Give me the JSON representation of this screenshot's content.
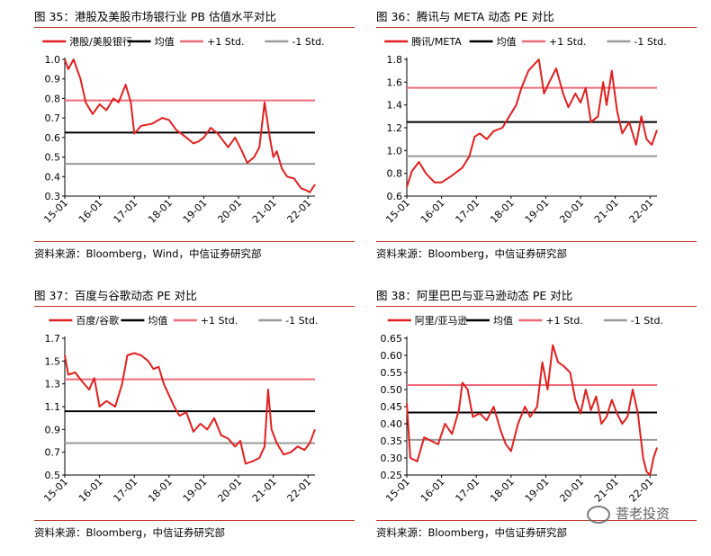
{
  "charts": [
    {
      "title": "图 35：港股及美股市场银行业 PB 估值水平对比",
      "source": "资料来源：Bloomberg，Wind，中信证券研究部",
      "type": "line",
      "series_name": "港股/美股银行",
      "legend": [
        "港股/美股银行",
        "均值",
        "+1 Std.",
        "-1 Std."
      ],
      "ylim": [
        0.3,
        1.0
      ],
      "yticks": [
        "0.3",
        "0.4",
        "0.5",
        "0.6",
        "0.7",
        "0.8",
        "0.9",
        "1.0"
      ],
      "xticks": [
        "15-01",
        "16-01",
        "17-01",
        "18-01",
        "19-01",
        "20-01",
        "21-01",
        "22-01"
      ],
      "mean": 0.625,
      "plus_std": 0.79,
      "minus_std": 0.465,
      "points": [
        [
          2015.0,
          1.0
        ],
        [
          2015.1,
          0.95
        ],
        [
          2015.25,
          1.02
        ],
        [
          2015.45,
          0.9
        ],
        [
          2015.6,
          0.78
        ],
        [
          2015.8,
          0.72
        ],
        [
          2016.0,
          0.77
        ],
        [
          2016.2,
          0.74
        ],
        [
          2016.4,
          0.8
        ],
        [
          2016.55,
          0.78
        ],
        [
          2016.75,
          0.87
        ],
        [
          2016.9,
          0.78
        ],
        [
          2017.0,
          0.62
        ],
        [
          2017.2,
          0.66
        ],
        [
          2017.5,
          0.67
        ],
        [
          2017.8,
          0.7
        ],
        [
          2018.0,
          0.69
        ],
        [
          2018.2,
          0.64
        ],
        [
          2018.5,
          0.6
        ],
        [
          2018.7,
          0.57
        ],
        [
          2018.85,
          0.58
        ],
        [
          2019.0,
          0.6
        ],
        [
          2019.2,
          0.65
        ],
        [
          2019.4,
          0.62
        ],
        [
          2019.7,
          0.55
        ],
        [
          2019.9,
          0.6
        ],
        [
          2020.1,
          0.53
        ],
        [
          2020.25,
          0.47
        ],
        [
          2020.45,
          0.5
        ],
        [
          2020.6,
          0.55
        ],
        [
          2020.75,
          0.78
        ],
        [
          2020.9,
          0.6
        ],
        [
          2021.0,
          0.5
        ],
        [
          2021.1,
          0.53
        ],
        [
          2021.25,
          0.44
        ],
        [
          2021.4,
          0.4
        ],
        [
          2021.6,
          0.39
        ],
        [
          2021.8,
          0.34
        ],
        [
          2021.95,
          0.33
        ],
        [
          2022.05,
          0.32
        ],
        [
          2022.2,
          0.36
        ]
      ]
    },
    {
      "title": "图 36：腾讯与 META 动态 PE 对比",
      "source": "资料来源：Bloomberg，中信证券研究部",
      "type": "line",
      "series_name": "腾讯/META",
      "legend": [
        "腾讯/META",
        "均值",
        "+1 Std.",
        "-1 Std."
      ],
      "ylim": [
        0.6,
        1.8
      ],
      "yticks": [
        "0.6",
        "0.8",
        "1.0",
        "1.2",
        "1.4",
        "1.6",
        "1.8"
      ],
      "xticks": [
        "15-01",
        "16-01",
        "17-01",
        "18-01",
        "19-01",
        "20-01",
        "21-01",
        "22-01"
      ],
      "mean": 1.25,
      "plus_std": 1.55,
      "minus_std": 0.95,
      "points": [
        [
          2015.0,
          0.68
        ],
        [
          2015.15,
          0.82
        ],
        [
          2015.35,
          0.9
        ],
        [
          2015.55,
          0.8
        ],
        [
          2015.8,
          0.72
        ],
        [
          2016.0,
          0.72
        ],
        [
          2016.3,
          0.78
        ],
        [
          2016.6,
          0.85
        ],
        [
          2016.8,
          0.95
        ],
        [
          2016.95,
          1.12
        ],
        [
          2017.1,
          1.15
        ],
        [
          2017.3,
          1.1
        ],
        [
          2017.5,
          1.17
        ],
        [
          2017.75,
          1.2
        ],
        [
          2017.95,
          1.3
        ],
        [
          2018.15,
          1.4
        ],
        [
          2018.3,
          1.55
        ],
        [
          2018.5,
          1.7
        ],
        [
          2018.65,
          1.75
        ],
        [
          2018.8,
          1.8
        ],
        [
          2018.95,
          1.5
        ],
        [
          2019.1,
          1.6
        ],
        [
          2019.3,
          1.72
        ],
        [
          2019.5,
          1.5
        ],
        [
          2019.65,
          1.38
        ],
        [
          2019.85,
          1.5
        ],
        [
          2020.0,
          1.42
        ],
        [
          2020.15,
          1.55
        ],
        [
          2020.3,
          1.25
        ],
        [
          2020.5,
          1.3
        ],
        [
          2020.65,
          1.6
        ],
        [
          2020.75,
          1.4
        ],
        [
          2020.9,
          1.7
        ],
        [
          2021.05,
          1.35
        ],
        [
          2021.2,
          1.15
        ],
        [
          2021.4,
          1.25
        ],
        [
          2021.6,
          1.05
        ],
        [
          2021.75,
          1.3
        ],
        [
          2021.9,
          1.1
        ],
        [
          2022.05,
          1.05
        ],
        [
          2022.2,
          1.18
        ]
      ]
    },
    {
      "title": "图 37：百度与谷歌动态 PE 对比",
      "source": "资料来源：Bloomberg，中信证券研究部",
      "type": "line",
      "series_name": "百度/谷歌",
      "legend": [
        "百度/谷歌",
        "均值",
        "+1 Std.",
        "-1 Std."
      ],
      "ylim": [
        0.5,
        1.7
      ],
      "yticks": [
        "0.5",
        "0.7",
        "0.9",
        "1.1",
        "1.3",
        "1.5",
        "1.7"
      ],
      "xticks": [
        "15-01",
        "16-01",
        "17-01",
        "18-01",
        "19-01",
        "20-01",
        "21-01",
        "22-01"
      ],
      "mean": 1.06,
      "plus_std": 1.34,
      "minus_std": 0.78,
      "points": [
        [
          2015.0,
          1.55
        ],
        [
          2015.1,
          1.38
        ],
        [
          2015.3,
          1.4
        ],
        [
          2015.5,
          1.32
        ],
        [
          2015.7,
          1.25
        ],
        [
          2015.85,
          1.35
        ],
        [
          2016.0,
          1.1
        ],
        [
          2016.2,
          1.15
        ],
        [
          2016.45,
          1.1
        ],
        [
          2016.65,
          1.3
        ],
        [
          2016.8,
          1.55
        ],
        [
          2017.0,
          1.57
        ],
        [
          2017.2,
          1.55
        ],
        [
          2017.4,
          1.5
        ],
        [
          2017.55,
          1.43
        ],
        [
          2017.7,
          1.45
        ],
        [
          2017.85,
          1.3
        ],
        [
          2018.0,
          1.2
        ],
        [
          2018.15,
          1.1
        ],
        [
          2018.3,
          1.02
        ],
        [
          2018.5,
          1.05
        ],
        [
          2018.7,
          0.88
        ],
        [
          2018.9,
          0.95
        ],
        [
          2019.1,
          0.9
        ],
        [
          2019.3,
          1.0
        ],
        [
          2019.5,
          0.85
        ],
        [
          2019.7,
          0.82
        ],
        [
          2019.9,
          0.75
        ],
        [
          2020.05,
          0.8
        ],
        [
          2020.2,
          0.6
        ],
        [
          2020.4,
          0.62
        ],
        [
          2020.6,
          0.65
        ],
        [
          2020.75,
          0.75
        ],
        [
          2020.85,
          1.25
        ],
        [
          2020.95,
          0.9
        ],
        [
          2021.1,
          0.78
        ],
        [
          2021.3,
          0.68
        ],
        [
          2021.5,
          0.7
        ],
        [
          2021.7,
          0.75
        ],
        [
          2021.9,
          0.72
        ],
        [
          2022.05,
          0.78
        ],
        [
          2022.2,
          0.9
        ]
      ]
    },
    {
      "title": "图 38：阿里巴巴与亚马逊动态 PE 对比",
      "source": "资料来源：Bloomberg，中信证券研究部",
      "type": "line",
      "series_name": "阿里/亚马逊",
      "legend": [
        "阿里/亚马逊",
        "均值",
        "+1 Std.",
        "-1 Std."
      ],
      "ylim": [
        0.25,
        0.65
      ],
      "yticks": [
        "0.25",
        "0.30",
        "0.35",
        "0.40",
        "0.45",
        "0.50",
        "0.55",
        "0.60",
        "0.65"
      ],
      "xticks": [
        "15-01",
        "16-01",
        "17-01",
        "18-01",
        "19-01",
        "20-01",
        "21-01",
        "22-01"
      ],
      "mean": 0.433,
      "plus_std": 0.513,
      "minus_std": 0.353,
      "points": [
        [
          2015.0,
          0.46
        ],
        [
          2015.1,
          0.3
        ],
        [
          2015.3,
          0.29
        ],
        [
          2015.5,
          0.36
        ],
        [
          2015.7,
          0.35
        ],
        [
          2015.9,
          0.34
        ],
        [
          2016.1,
          0.4
        ],
        [
          2016.3,
          0.37
        ],
        [
          2016.5,
          0.44
        ],
        [
          2016.6,
          0.52
        ],
        [
          2016.75,
          0.5
        ],
        [
          2016.9,
          0.42
        ],
        [
          2017.1,
          0.43
        ],
        [
          2017.3,
          0.41
        ],
        [
          2017.5,
          0.45
        ],
        [
          2017.7,
          0.38
        ],
        [
          2017.85,
          0.34
        ],
        [
          2018.0,
          0.32
        ],
        [
          2018.2,
          0.4
        ],
        [
          2018.4,
          0.45
        ],
        [
          2018.55,
          0.42
        ],
        [
          2018.75,
          0.45
        ],
        [
          2018.9,
          0.58
        ],
        [
          2019.05,
          0.5
        ],
        [
          2019.2,
          0.63
        ],
        [
          2019.35,
          0.58
        ],
        [
          2019.5,
          0.57
        ],
        [
          2019.7,
          0.55
        ],
        [
          2019.85,
          0.47
        ],
        [
          2020.0,
          0.43
        ],
        [
          2020.15,
          0.5
        ],
        [
          2020.3,
          0.44
        ],
        [
          2020.45,
          0.48
        ],
        [
          2020.6,
          0.4
        ],
        [
          2020.75,
          0.42
        ],
        [
          2020.9,
          0.47
        ],
        [
          2021.05,
          0.43
        ],
        [
          2021.2,
          0.4
        ],
        [
          2021.35,
          0.42
        ],
        [
          2021.5,
          0.5
        ],
        [
          2021.65,
          0.43
        ],
        [
          2021.8,
          0.3
        ],
        [
          2021.9,
          0.26
        ],
        [
          2022.0,
          0.25
        ],
        [
          2022.1,
          0.3
        ],
        [
          2022.2,
          0.33
        ]
      ]
    }
  ],
  "watermark": "菩老投资",
  "colors": {
    "series": "#e02020",
    "mean": "#000000",
    "plus_std": "#f06b7a",
    "minus_std": "#9a9a9a",
    "rule": "#c0392b"
  }
}
